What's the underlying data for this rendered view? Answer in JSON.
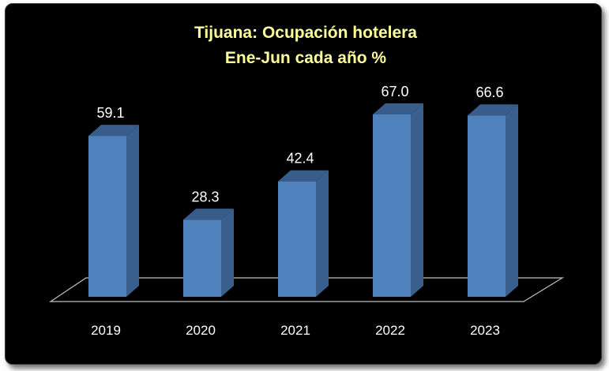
{
  "chart_data": {
    "type": "bar",
    "title": "Tijuana: Ocupación hotelera",
    "subtitle": "Ene-Jun cada año %",
    "categories": [
      "2019",
      "2020",
      "2021",
      "2022",
      "2023"
    ],
    "values": [
      59.1,
      28.3,
      42.4,
      67.0,
      66.6
    ],
    "value_labels": [
      "59.1",
      "28.3",
      "42.4",
      "67.0",
      "66.6"
    ],
    "style": "3d",
    "grid": false,
    "legend": "none",
    "colors": {
      "background": "#000000",
      "title": "#ffff99",
      "bar_front": "#4f81bd",
      "bar_side": "#3a5f8c",
      "bar_top": "#385d8a",
      "floor_line": "#bfbfbf",
      "text": "#ffffff"
    }
  }
}
